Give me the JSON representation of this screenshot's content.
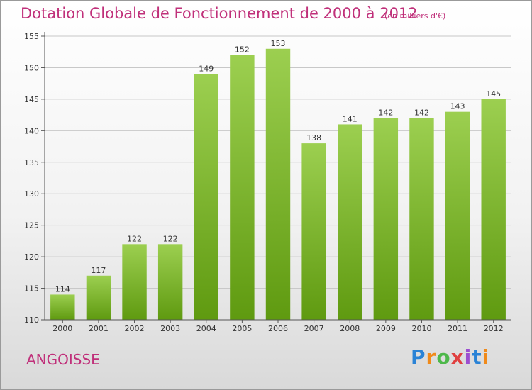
{
  "header": {
    "title": "Dotation Globale de Fonctionnement de 2000 à 2012",
    "unit": "(en milliers d'€)"
  },
  "footer": {
    "commune": "ANGOISSE",
    "logo": "Proxiti"
  },
  "colors": {
    "title": "#c0307a",
    "bar_light": "#9ccf50",
    "bar_dark": "#5f9a10",
    "grid": "#c8c8c8",
    "axis": "#555555"
  },
  "chart_data": {
    "type": "bar",
    "title": "Dotation Globale de Fonctionnement de 2000 à 2012",
    "xlabel": "",
    "ylabel": "",
    "categories": [
      "2000",
      "2001",
      "2002",
      "2003",
      "2004",
      "2005",
      "2006",
      "2007",
      "2008",
      "2009",
      "2010",
      "2011",
      "2012"
    ],
    "values": [
      114,
      117,
      122,
      122,
      149,
      152,
      153,
      138,
      141,
      142,
      142,
      143,
      145
    ],
    "ylim": [
      110,
      155
    ],
    "yticks": [
      110,
      115,
      120,
      125,
      130,
      135,
      140,
      145,
      150,
      155
    ],
    "grid": true,
    "legend": "none"
  }
}
